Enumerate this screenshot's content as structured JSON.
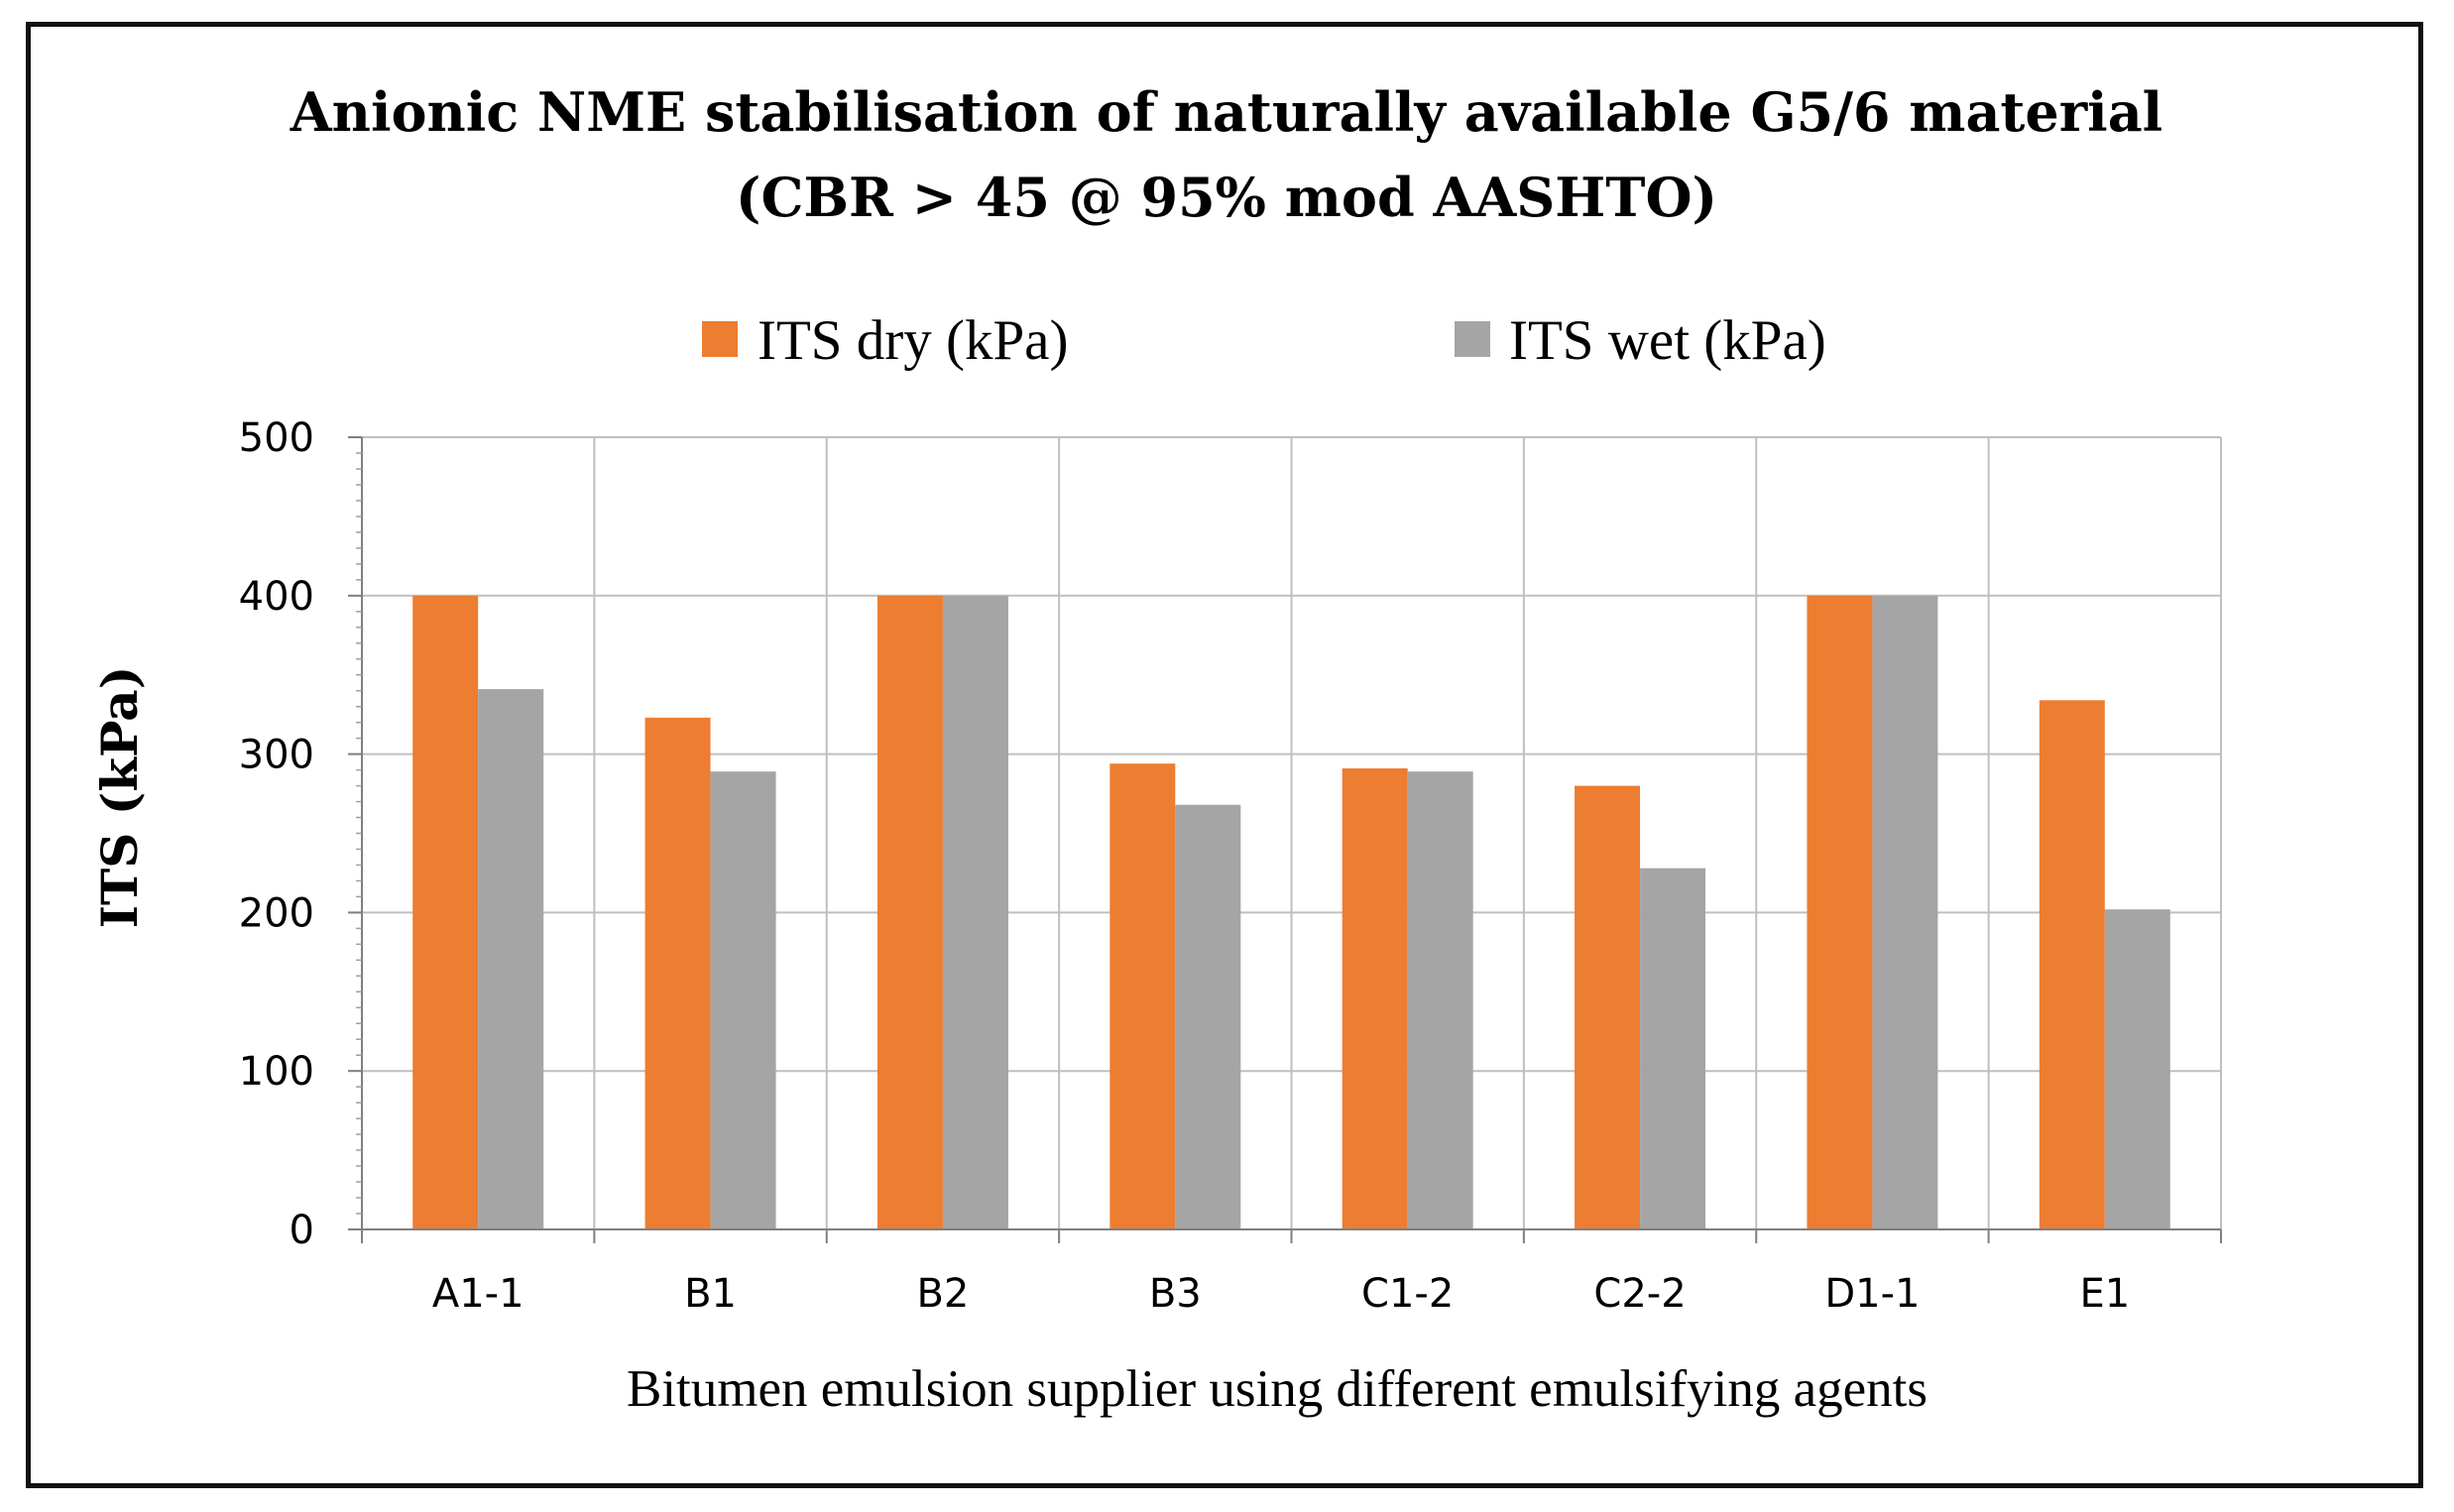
{
  "chart_data": {
    "type": "bar",
    "title_line1": "Anionic  NME stabilisation  of naturally available  G5/6 material",
    "title_line2": "(CBR > 45 @ 95% mod AASHTO)",
    "xlabel": "Bitumen emulsion supplier using different emulsifying agents",
    "ylabel": "ITS (kPa)",
    "categories": [
      "A1-1",
      "B1",
      "B2",
      "B3",
      "C1-2",
      "C2-2",
      "D1-1",
      "E1"
    ],
    "series": [
      {
        "name": "ITS dry (kPa)",
        "color": "#ED7D31",
        "values": [
          400,
          323,
          400,
          294,
          291,
          280,
          400,
          334
        ]
      },
      {
        "name": "ITS wet (kPa)",
        "color": "#A5A5A5",
        "values": [
          341,
          289,
          400,
          268,
          289,
          228,
          400,
          202
        ]
      }
    ],
    "ylim": [
      0,
      500
    ],
    "yticks": [
      "0",
      "100",
      "200",
      "300",
      "400",
      "500"
    ],
    "ytick_values": [
      0,
      100,
      200,
      300,
      400,
      500
    ],
    "grid": true,
    "legend": "top-center"
  }
}
